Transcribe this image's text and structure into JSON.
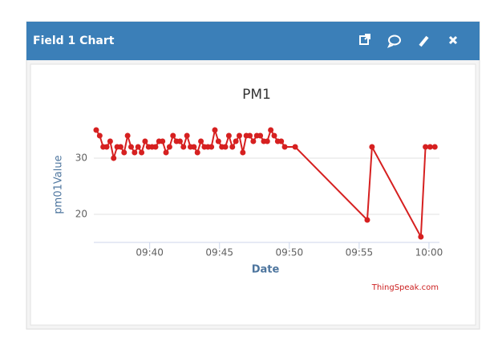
{
  "header": {
    "title": "Field 1 Chart"
  },
  "chart_data": {
    "type": "line",
    "title": "PM1",
    "x_label": "Date",
    "y_label": "pm01Value",
    "credit": "ThingSpeak.com",
    "x": [
      36.17,
      36.42,
      36.67,
      36.92,
      37.17,
      37.42,
      37.67,
      37.92,
      38.17,
      38.42,
      38.67,
      38.92,
      39.17,
      39.42,
      39.67,
      39.92,
      40.17,
      40.42,
      40.67,
      40.92,
      41.17,
      41.42,
      41.67,
      41.92,
      42.17,
      42.42,
      42.67,
      42.92,
      43.17,
      43.42,
      43.67,
      43.92,
      44.17,
      44.42,
      44.67,
      44.92,
      45.17,
      45.42,
      45.67,
      45.92,
      46.17,
      46.42,
      46.67,
      46.92,
      47.17,
      47.42,
      47.67,
      47.92,
      48.17,
      48.42,
      48.67,
      48.92,
      49.17,
      49.42,
      49.67,
      50.42,
      55.58,
      55.92,
      59.42,
      59.75,
      60.08,
      60.42
    ],
    "series": [
      {
        "name": "pm01Value",
        "color": "#d62020",
        "values": [
          35,
          34,
          32,
          32,
          33,
          30,
          32,
          32,
          31,
          34,
          32,
          31,
          32,
          31,
          33,
          32,
          32,
          32,
          33,
          33,
          31,
          32,
          34,
          33,
          33,
          32,
          34,
          32,
          32,
          31,
          33,
          32,
          32,
          32,
          35,
          33,
          32,
          32,
          34,
          32,
          33,
          34,
          31,
          34,
          34,
          33,
          34,
          34,
          33,
          33,
          35,
          34,
          33,
          33,
          32,
          32,
          19,
          32,
          16,
          32,
          32,
          32
        ]
      }
    ],
    "xlim": [
      36,
      60.75
    ],
    "xticks": [
      {
        "value": 40,
        "label": "09:40"
      },
      {
        "value": 45,
        "label": "09:45"
      },
      {
        "value": 50,
        "label": "09:50"
      },
      {
        "value": 55,
        "label": "09:55"
      },
      {
        "value": 60,
        "label": "10:00"
      }
    ],
    "ylim": [
      15,
      38
    ],
    "yticks": [
      20,
      30
    ],
    "grid": true
  }
}
